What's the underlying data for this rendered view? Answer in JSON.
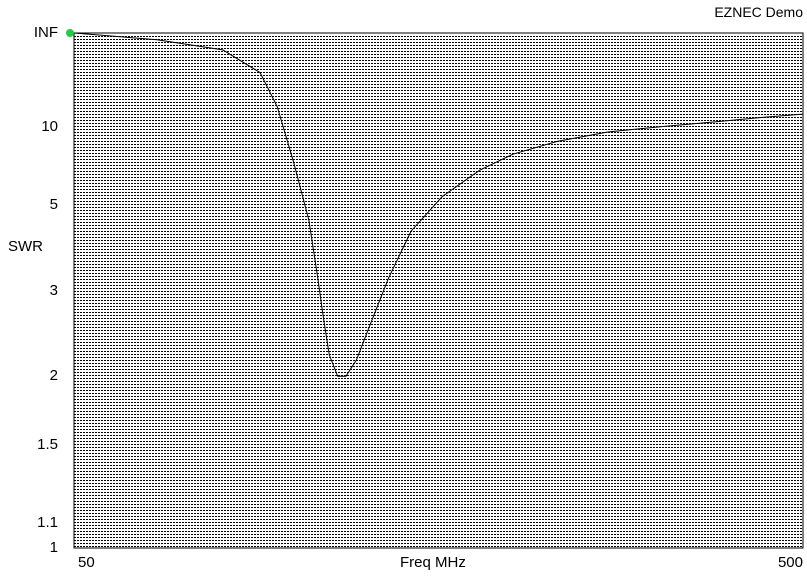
{
  "window": {
    "title": "EZNEC Demo"
  },
  "chart_data": {
    "type": "line",
    "title": "",
    "xlabel": "Freq MHz",
    "ylabel": "SWR",
    "x_scale": "log",
    "xlim": [
      50,
      500
    ],
    "x_tick_labels": [
      "50",
      "500"
    ],
    "y_scale": "swr",
    "y_tick_labels": [
      "INF",
      "10",
      "5",
      "3",
      "2",
      "1.5",
      "1.1",
      "1"
    ],
    "y_tick_values": [
      "INF",
      10,
      5,
      3,
      2,
      1.5,
      1.1,
      1
    ],
    "grid": true,
    "marker": {
      "x": 50,
      "y": "INF",
      "color": "#22cc44"
    },
    "series": [
      {
        "color": "#000000",
        "x": [
          50,
          65,
          80,
          90,
          95,
          100,
          105,
          108,
          110,
          112,
          115,
          118,
          122,
          127,
          135,
          145,
          160,
          180,
          200,
          230,
          270,
          320,
          380,
          440,
          500
        ],
        "y": [
          "INF",
          150,
          60,
          25,
          13,
          7,
          4.5,
          3.2,
          2.6,
          2.2,
          2.0,
          2.0,
          2.15,
          2.5,
          3.2,
          4.2,
          5.3,
          6.5,
          7.5,
          8.5,
          9.4,
          10.0,
          10.6,
          11.2,
          11.7
        ]
      }
    ]
  }
}
